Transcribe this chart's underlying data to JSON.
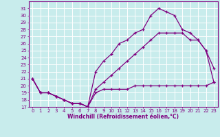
{
  "xlabel": "Windchill (Refroidissement éolien,°C)",
  "bg_color": "#c8ecec",
  "line_color": "#800080",
  "grid_color": "#ffffff",
  "xlim": [
    -0.5,
    23.5
  ],
  "ylim": [
    17,
    32
  ],
  "yticks": [
    17,
    18,
    19,
    20,
    21,
    22,
    23,
    24,
    25,
    26,
    27,
    28,
    29,
    30,
    31
  ],
  "xticks": [
    0,
    1,
    2,
    3,
    4,
    5,
    6,
    7,
    8,
    9,
    10,
    11,
    12,
    13,
    14,
    15,
    16,
    17,
    18,
    19,
    20,
    21,
    22,
    23
  ],
  "line1_x": [
    0,
    1,
    2,
    3,
    4,
    5,
    6,
    7,
    8,
    9,
    10,
    11,
    12,
    13,
    14,
    15,
    16,
    17,
    18,
    19,
    20,
    21,
    22,
    23
  ],
  "line1_y": [
    21.0,
    19.0,
    19.0,
    18.5,
    18.0,
    17.5,
    17.5,
    17.0,
    19.0,
    19.5,
    19.5,
    19.5,
    19.5,
    20.0,
    20.0,
    20.0,
    20.0,
    20.0,
    20.0,
    20.0,
    20.0,
    20.0,
    20.0,
    20.5
  ],
  "line2_x": [
    0,
    1,
    2,
    3,
    4,
    5,
    6,
    7,
    8,
    9,
    10,
    11,
    12,
    13,
    14,
    15,
    16,
    17,
    18,
    19,
    20,
    21,
    22,
    23
  ],
  "line2_y": [
    21.0,
    19.0,
    19.0,
    18.5,
    18.0,
    17.5,
    17.5,
    17.0,
    22.0,
    23.5,
    24.5,
    26.0,
    26.5,
    27.5,
    28.0,
    30.0,
    31.0,
    30.5,
    30.0,
    28.0,
    27.5,
    26.5,
    25.0,
    22.5
  ],
  "line3_x": [
    0,
    1,
    2,
    3,
    4,
    5,
    6,
    7,
    8,
    9,
    10,
    11,
    12,
    13,
    14,
    15,
    16,
    17,
    18,
    19,
    20,
    21,
    22,
    23
  ],
  "line3_y": [
    21.0,
    19.0,
    19.0,
    18.5,
    18.0,
    17.5,
    17.5,
    17.0,
    19.5,
    20.5,
    21.5,
    22.5,
    23.5,
    24.5,
    25.5,
    26.5,
    27.5,
    27.5,
    27.5,
    27.5,
    26.5,
    26.5,
    25.0,
    20.5
  ],
  "tick_labelsize": 5,
  "xlabel_fontsize": 5.5,
  "lw": 0.9,
  "ms": 2.0
}
